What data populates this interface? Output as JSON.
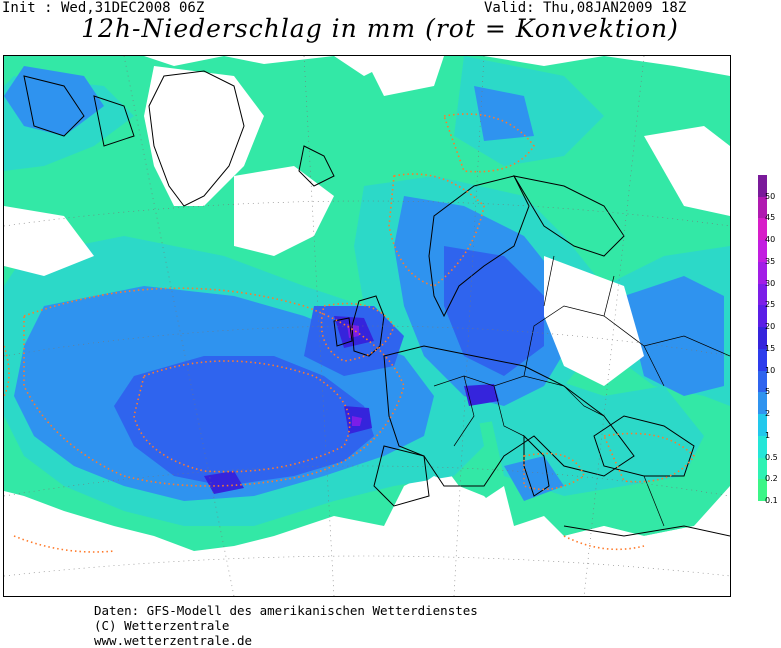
{
  "header": {
    "init": "Init : Wed,31DEC2008 06Z",
    "valid": "Valid: Thu,08JAN2009 18Z",
    "title": "12h-Niederschlag in mm (rot = Konvektion)"
  },
  "legend": {
    "levels": [
      "0.1",
      "0.2",
      "0.5",
      "1",
      "2",
      "5",
      "10",
      "15",
      "20",
      "25",
      "30",
      "35",
      "40",
      "45",
      "50"
    ],
    "colors": [
      "#3cf587",
      "#2ef2b4",
      "#24e6d8",
      "#22c8ec",
      "#2f93ef",
      "#2f64ee",
      "#2d3cec",
      "#3524dc",
      "#5a1ee6",
      "#7c1ee8",
      "#a21ee6",
      "#c21ee0",
      "#d71ec8",
      "#b01ab0",
      "#7a1a9a"
    ]
  },
  "footer": {
    "line1": "Daten: GFS-Modell des amerikanischen Wetterdienstes",
    "line2": "(C) Wetterzentrale",
    "line3": "www.wetterzentrale.de"
  }
}
